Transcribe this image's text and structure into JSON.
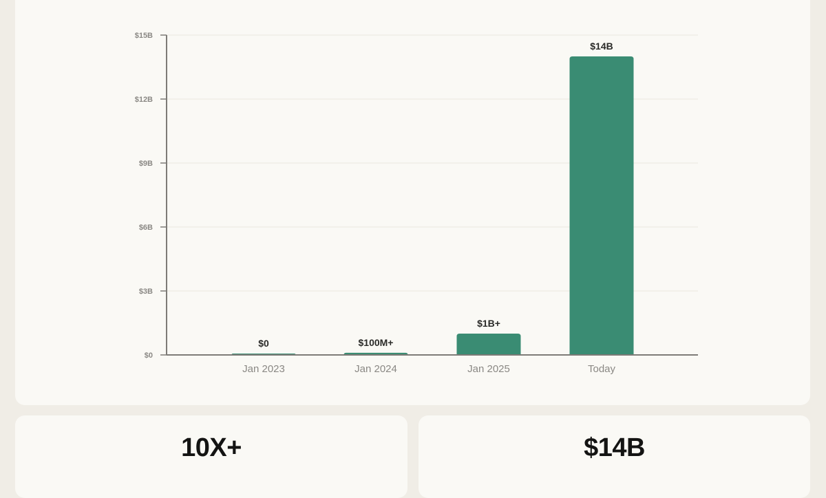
{
  "chart_data": {
    "type": "bar",
    "title": "",
    "xlabel": "",
    "ylabel": "",
    "categories": [
      "Jan 2023",
      "Jan 2024",
      "Jan 2025",
      "Today"
    ],
    "values": [
      0,
      0.1,
      1,
      14
    ],
    "value_labels": [
      "$0",
      "$100M+",
      "$1B+",
      "$14B"
    ],
    "units": "billions USD",
    "ylim": [
      0,
      15
    ],
    "yticks": [
      0,
      3,
      6,
      9,
      12,
      15
    ],
    "ytick_labels": [
      "$0",
      "$3B",
      "$6B",
      "$9B",
      "$12B",
      "$15B"
    ],
    "grid": true,
    "legend": null,
    "bar_color": "#3a8c73"
  },
  "stats": {
    "left_value": "10X+",
    "right_value": "$14B"
  },
  "colors": {
    "background": "#f0ede6",
    "card": "#faf9f5",
    "bar": "#3a8c73",
    "axis": "#7d7b77",
    "grid": "#e9e6df",
    "tick_text": "#8a8884",
    "label_text": "#2a2a28"
  }
}
